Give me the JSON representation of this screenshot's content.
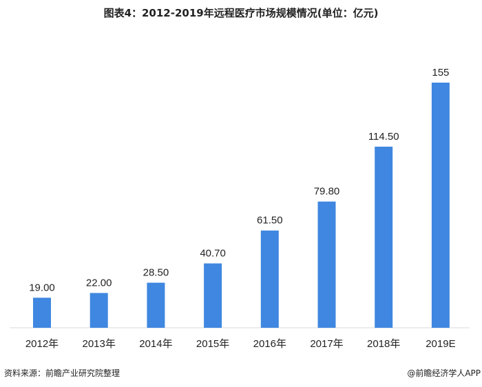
{
  "chart_data": {
    "type": "bar",
    "title": "图表4：2012-2019年远程医疗市场规模情况(单位：亿元)",
    "categories": [
      "2012年",
      "2013年",
      "2014年",
      "2015年",
      "2016年",
      "2017年",
      "2018年",
      "2019E"
    ],
    "values": [
      19.0,
      22.0,
      28.5,
      40.7,
      61.5,
      79.8,
      114.5,
      155
    ],
    "data_labels": [
      "19.00",
      "22.00",
      "28.50",
      "40.70",
      "61.50",
      "79.80",
      "114.50",
      "155"
    ],
    "ylim": [
      0,
      155
    ],
    "grid": false,
    "xlabel": "",
    "ylabel": "",
    "bar_color": "#3f87e0"
  },
  "footer": {
    "source": "资料来源：前瞻产业研究院整理",
    "credit": "@前瞻经济学人APP"
  },
  "watermark": "前瞻产业研究院"
}
